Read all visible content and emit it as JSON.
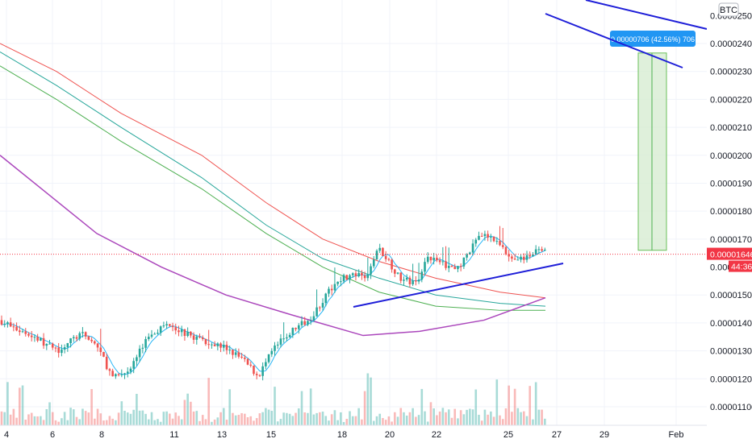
{
  "chart_data": {
    "type": "candlestick",
    "quote_currency": "BTC",
    "x_ticks": [
      "4",
      "6",
      "8",
      "11",
      "13",
      "15",
      "18",
      "20",
      "22",
      "25",
      "27",
      "29",
      "Feb"
    ],
    "y_ticks": [
      "0.00002400",
      "0.00002300",
      "0.00002200",
      "0.00002100",
      "0.00002000",
      "0.00001900",
      "0.00001800",
      "0.00001700",
      "0.00001500",
      "0.00001400",
      "0.00001300",
      "0.00001200",
      "0.00001100"
    ],
    "y_tick_top_partial": "0.00002500",
    "ylim": [
      1.05e-05,
      2.55e-05
    ],
    "last_price": "0.00001646",
    "last_price_value": 1.646e-05,
    "countdown": "44:36",
    "measure_label": "0.00000706 (42.56%) 706",
    "measure_range": [
      1.66e-05,
      2.366e-05
    ],
    "moving_averages": [
      {
        "color": "#ef5350"
      },
      {
        "color": "#26a69a"
      },
      {
        "color": "#4caf50"
      },
      {
        "color": "#ab47bc"
      },
      {
        "color": "#29b6f6"
      }
    ],
    "colors": {
      "up": "#26a69a",
      "down": "#ef5350",
      "trendline": "#1e1ed8",
      "price_tag": "#f23645",
      "measure_tag": "#2196f3",
      "measure_fill": "#d7ecd2"
    }
  }
}
